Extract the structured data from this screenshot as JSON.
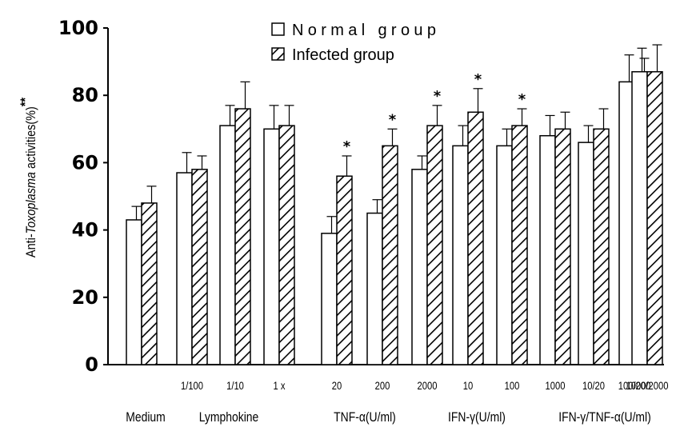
{
  "chart_data": {
    "type": "bar",
    "ylabel_prefix": "Anti-",
    "ylabel_italic": "Toxoplasma",
    "ylabel_suffix": " activities(%)",
    "ylabel_mark": "**",
    "ylim": [
      0,
      100
    ],
    "yticks": [
      "0",
      "20",
      "40",
      "60",
      "80",
      "100"
    ],
    "grid": false,
    "legend_position": "top-center",
    "series": [
      {
        "name": "Normal group",
        "pattern": "open"
      },
      {
        "name": "Infected group",
        "pattern": "hatched"
      }
    ],
    "groups": [
      {
        "label": "Medium",
        "categories": [
          {
            "label": "",
            "normal": 43,
            "normal_err": 4,
            "infected": 48,
            "infected_err": 5,
            "sig": false
          }
        ]
      },
      {
        "label": "Lymphokine",
        "categories": [
          {
            "label": "1/100",
            "normal": 57,
            "normal_err": 6,
            "infected": 58,
            "infected_err": 4,
            "sig": false
          },
          {
            "label": "1/10",
            "normal": 71,
            "normal_err": 6,
            "infected": 76,
            "infected_err": 8,
            "sig": false
          },
          {
            "label": "1 x",
            "normal": 70,
            "normal_err": 7,
            "infected": 71,
            "infected_err": 6,
            "sig": false
          }
        ]
      },
      {
        "label": "TNF-α(U/ml)",
        "categories": [
          {
            "label": "20",
            "normal": 39,
            "normal_err": 5,
            "infected": 56,
            "infected_err": 6,
            "sig": true
          },
          {
            "label": "200",
            "normal": 45,
            "normal_err": 4,
            "infected": 65,
            "infected_err": 5,
            "sig": true
          },
          {
            "label": "2000",
            "normal": 58,
            "normal_err": 4,
            "infected": 71,
            "infected_err": 6,
            "sig": true
          }
        ]
      },
      {
        "label": "IFN-γ(U/ml)",
        "categories": [
          {
            "label": "10",
            "normal": 65,
            "normal_err": 6,
            "infected": 75,
            "infected_err": 7,
            "sig": true
          },
          {
            "label": "100",
            "normal": 65,
            "normal_err": 5,
            "infected": 71,
            "infected_err": 5,
            "sig": true
          },
          {
            "label": "1000",
            "normal": 68,
            "normal_err": 6,
            "infected": 70,
            "infected_err": 5,
            "sig": false
          }
        ]
      },
      {
        "label": "IFN-γ/TNF-α(U/ml)",
        "categories": [
          {
            "label": "10/20",
            "normal": 66,
            "normal_err": 5,
            "infected": 70,
            "infected_err": 6,
            "sig": false
          },
          {
            "label": "100/200",
            "normal": 84,
            "normal_err": 8,
            "infected": 82,
            "infected_err": 9,
            "sig": false
          },
          {
            "label": "1000/2000",
            "normal": 87,
            "normal_err": 7,
            "infected": 87,
            "infected_err": 8,
            "sig": false
          }
        ]
      }
    ],
    "sig_mark": "*"
  }
}
